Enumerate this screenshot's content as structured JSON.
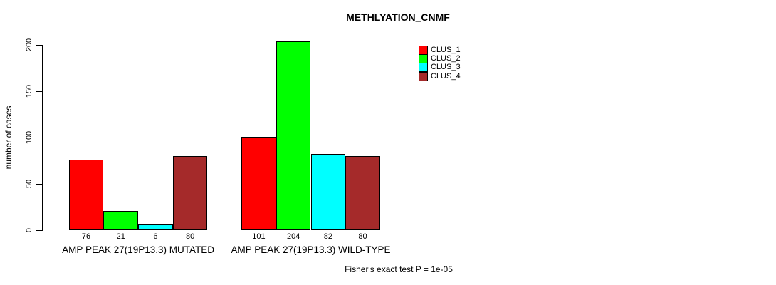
{
  "chart_data": {
    "type": "bar",
    "title": "METHLYATION_CNMF",
    "ylabel": "number of cases",
    "xlabel": "",
    "ylim": [
      0,
      200
    ],
    "yticks": [
      0,
      50,
      100,
      150,
      200
    ],
    "grid": false,
    "legend_position": "top-right",
    "background": "#ffffff",
    "axis_color": "#000000",
    "categories": [
      "AMP PEAK 27(19P13.3) MUTATED",
      "AMP PEAK 27(19P13.3) WILD-TYPE"
    ],
    "series": [
      {
        "name": "CLUS_1",
        "color": "#ff0000",
        "values": [
          76,
          101
        ]
      },
      {
        "name": "CLUS_2",
        "color": "#00ff00",
        "values": [
          21,
          204
        ]
      },
      {
        "name": "CLUS_3",
        "color": "#00ffff",
        "values": [
          6,
          82
        ]
      },
      {
        "name": "CLUS_4",
        "color": "#a52a2a",
        "values": [
          80,
          80
        ]
      }
    ],
    "bar_value_labels": [
      [
        76,
        21,
        6,
        80
      ],
      [
        101,
        204,
        82,
        80
      ]
    ],
    "annotation": "Fisher's exact test P = 1e-05"
  }
}
